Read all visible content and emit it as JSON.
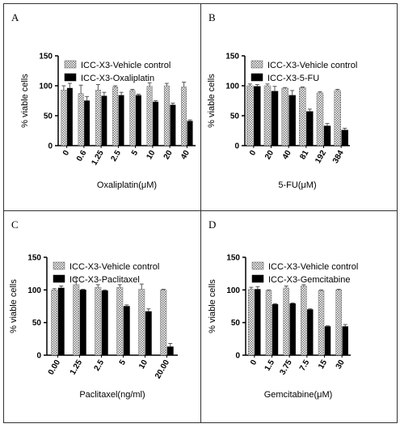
{
  "colors": {
    "vehicle_pattern": "#b5b5b5",
    "treatment": "#000000",
    "frame": "#333333"
  },
  "chart_data": [
    {
      "panel": "A",
      "type": "bar",
      "ylabel": "% viable cells",
      "xlabel": "Oxaliplatin(μM)",
      "ylim": [
        0,
        150
      ],
      "yticks": [
        0,
        50,
        100,
        150
      ],
      "categories": [
        "0",
        "0.6",
        "1.25",
        "2.5",
        "5",
        "10",
        "20",
        "40"
      ],
      "series": [
        {
          "name": "ICC-X3-Vehicle control",
          "values": [
            93,
            87,
            93,
            98,
            92,
            99,
            100,
            98
          ],
          "errors": [
            7,
            14,
            9,
            2,
            2,
            6,
            4,
            8
          ]
        },
        {
          "name": "ICC-X3-Oxaliplatin",
          "values": [
            96,
            75,
            83,
            84,
            84,
            73,
            68,
            41
          ],
          "errors": [
            8,
            7,
            6,
            5,
            2,
            2,
            3,
            2
          ]
        }
      ]
    },
    {
      "panel": "B",
      "type": "bar",
      "ylabel": "% viable cells",
      "xlabel": "5-FU(μM)",
      "ylim": [
        0,
        150
      ],
      "yticks": [
        0,
        50,
        100,
        150
      ],
      "categories": [
        "0",
        "20",
        "40",
        "81",
        "192",
        "384"
      ],
      "series": [
        {
          "name": "ICC-X3-Vehicle control",
          "values": [
            100,
            100,
            96,
            97,
            88,
            92
          ],
          "errors": [
            3,
            3,
            1,
            1,
            2,
            2
          ]
        },
        {
          "name": "ICC-X3-5-FU",
          "values": [
            99,
            91,
            84,
            57,
            33,
            26
          ],
          "errors": [
            3,
            8,
            8,
            4,
            4,
            3
          ]
        }
      ]
    },
    {
      "panel": "C",
      "type": "bar",
      "ylabel": "% viable cells",
      "xlabel": "Paclitaxel(ng/ml)",
      "ylim": [
        0,
        150
      ],
      "yticks": [
        0,
        50,
        100,
        150
      ],
      "categories": [
        "0.00",
        "1.25",
        "2.5",
        "5",
        "10",
        "20.00"
      ],
      "series": [
        {
          "name": "ICC-X3-Vehicle control",
          "values": [
            100,
            108,
            104,
            104,
            101,
            100
          ],
          "errors": [
            2,
            10,
            4,
            4,
            8,
            1
          ]
        },
        {
          "name": "ICC-X3-Paclitaxel",
          "values": [
            103,
            100,
            99,
            75,
            67,
            13
          ],
          "errors": [
            3,
            1,
            1,
            2,
            4,
            5
          ]
        }
      ]
    },
    {
      "panel": "D",
      "type": "bar",
      "ylabel": "% viable cells",
      "xlabel": "Gemcitabine(μM)",
      "ylim": [
        0,
        150
      ],
      "yticks": [
        0,
        50,
        100,
        150
      ],
      "categories": [
        "0",
        "1.5",
        "3.75",
        "7.5",
        "15",
        "30"
      ],
      "series": [
        {
          "name": "ICC-X3-Vehicle control",
          "values": [
            101,
            99,
            103,
            106,
            99,
            100
          ],
          "errors": [
            3,
            1,
            3,
            2,
            1,
            1
          ]
        },
        {
          "name": "ICC-X3-Gemcitabine",
          "values": [
            101,
            78,
            79,
            70,
            44,
            44
          ],
          "errors": [
            4,
            1,
            1,
            1,
            1,
            3
          ]
        }
      ]
    }
  ]
}
